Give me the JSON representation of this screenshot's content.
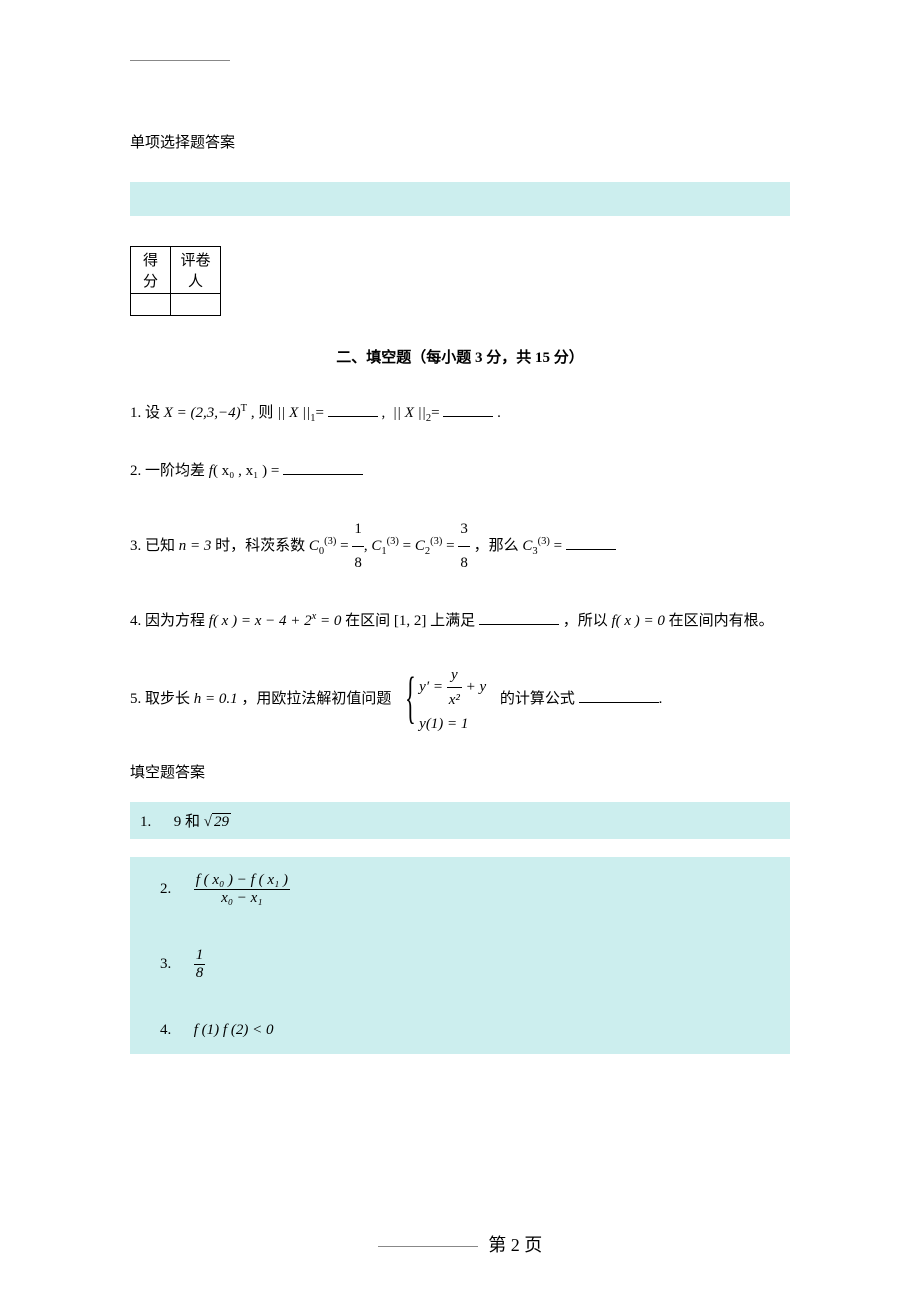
{
  "colors": {
    "highlight_bg": "#cceeee",
    "page_bg": "#ffffff",
    "text": "#000000",
    "rule": "#888888"
  },
  "fonts": {
    "body_family": "SimSun",
    "math_family": "Times New Roman",
    "body_size_pt": 11,
    "title_size_pt": 11,
    "footer_size_pt": 14
  },
  "headings": {
    "mc_answer_title": "单项选择题答案",
    "section_b_title": "二、填空题（每小题 3 分，共 15 分）",
    "fill_answer_title": "填空题答案"
  },
  "score_table": {
    "header_score": "得分",
    "header_reviewer": "评卷人",
    "value_score": "",
    "value_reviewer": ""
  },
  "questions": {
    "q1": {
      "num": "1.",
      "pre": "设",
      "expr_X": "X = (2,3,−4)",
      "expr_X_sup": "T",
      "mid1": ",  则",
      "norm1": "|| X ||",
      "norm1_sub": "1",
      "eq": "=",
      "sep": ",",
      "norm2": "|| X ||",
      "norm2_sub": "2",
      "tail": "."
    },
    "q2": {
      "num": "2.",
      "pre": "一阶均差",
      "f": "f",
      "args": "( x₀ , x₁ )",
      "eq": "="
    },
    "q3": {
      "num": "3.",
      "pre1": "已知",
      "n_expr": "n = 3",
      "pre2": "时，科茨系数",
      "c0": "C",
      "c0_sub": "0",
      "c0_sup": "(3)",
      "f1_num": "1",
      "f1_den": "8",
      "c1": "C",
      "c1_sub": "1",
      "c1_sup": "(3)",
      "c2": "C",
      "c2_sub": "2",
      "c2_sup": "(3)",
      "f2_num": "3",
      "f2_den": "8",
      "mid": "，那么",
      "c3": "C",
      "c3_sub": "3",
      "c3_sup": "(3)",
      "eq": "="
    },
    "q4": {
      "num": "4.",
      "pre": "因为方程",
      "f": "f",
      "expr": "( x ) = x − 4 + 2",
      "expr_sup": "x",
      "expr_tail": " = 0",
      "mid1": "在区间",
      "interval": "[1, 2]",
      "mid2": "上满足",
      "mid3": "，所以",
      "f2": "f",
      "expr2": "( x ) = 0",
      "tail": "在区间内有根。"
    },
    "q5": {
      "num": "5.",
      "pre1": "取步长",
      "h_expr": "h = 0.1",
      "pre2": "，用欧拉法解初值问题",
      "case1_lhs": "y′ =",
      "case1_frac_num": "y",
      "case1_frac_den": "x²",
      "case1_tail": " + y",
      "case2": "y(1) = 1",
      "tail": "的计算公式",
      "dot": "."
    }
  },
  "answers": {
    "a1": {
      "num": "1.",
      "v1": "9",
      "conj": "和",
      "sqrt_val": "29"
    },
    "a2": {
      "num": "2.",
      "frac_num": "f ( x₀ ) − f ( x₁ )",
      "frac_den": "x₀ − x₁"
    },
    "a3": {
      "num": "3.",
      "frac_num": "1",
      "frac_den": "8"
    },
    "a4": {
      "num": "4.",
      "expr": "f (1) f (2) < 0"
    }
  },
  "footer": {
    "label": "第",
    "page": "2",
    "suffix": "页"
  }
}
